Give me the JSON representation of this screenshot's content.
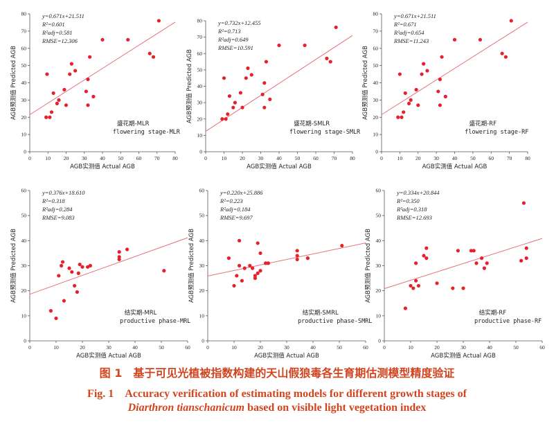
{
  "colors": {
    "points": "#e5222b",
    "fit": "#e8707a",
    "axis": "#555555",
    "caption": "#d2441e",
    "text": "#222222"
  },
  "chart_data": [
    {
      "type": "scatter",
      "xlabel": "AGB实测值 Actual AGB",
      "ylabel": "AGB预测值 Predicted AGB",
      "xlim": [
        0,
        80
      ],
      "ylim": [
        0,
        80
      ],
      "xticks": [
        0,
        10,
        20,
        30,
        40,
        50,
        60,
        70,
        80
      ],
      "yticks": [
        0,
        10,
        20,
        30,
        40,
        50,
        60,
        70,
        80
      ],
      "fit": {
        "slope": 0.671,
        "intercept": 21.511
      },
      "stats": [
        "y=0.671x+21.511",
        "R²=0.601",
        "R²adj=0.581",
        "RMSE=12.306"
      ],
      "label_cn": "盛花期-MLR",
      "label_en": "flowering stage-MLR",
      "points": [
        [
          9,
          20
        ],
        [
          9.5,
          45
        ],
        [
          11,
          20
        ],
        [
          12,
          23
        ],
        [
          13,
          34
        ],
        [
          15,
          28
        ],
        [
          16,
          30
        ],
        [
          19,
          36
        ],
        [
          20,
          27
        ],
        [
          22,
          45
        ],
        [
          23,
          51
        ],
        [
          25,
          47
        ],
        [
          31,
          35
        ],
        [
          32,
          27
        ],
        [
          32,
          42
        ],
        [
          33,
          55
        ],
        [
          35,
          32
        ],
        [
          40,
          65
        ],
        [
          54,
          65
        ],
        [
          66,
          57
        ],
        [
          68,
          55
        ],
        [
          71,
          76
        ]
      ]
    },
    {
      "type": "scatter",
      "xlabel": "AGB实测值 Actual AGB",
      "ylabel": "AGB预测值 Predicted AGB",
      "xlim": [
        0,
        80
      ],
      "ylim": [
        0,
        80
      ],
      "xticks": [
        0,
        10,
        20,
        30,
        40,
        50,
        60,
        70,
        80
      ],
      "yticks": [
        0,
        10,
        20,
        30,
        40,
        50,
        60,
        70,
        80
      ],
      "fit": {
        "slope": 0.732,
        "intercept": 12.455
      },
      "stats": [
        "y=0.732x+12.455",
        "R²=0.713",
        "R²adj=0.649",
        "RMSE=10.591"
      ],
      "label_cn": "盛花期-SMLR",
      "label_en": "flowering stage-SMLR",
      "points": [
        [
          9,
          20
        ],
        [
          10,
          45
        ],
        [
          11,
          20
        ],
        [
          12,
          23
        ],
        [
          13,
          34
        ],
        [
          15,
          27
        ],
        [
          16,
          30
        ],
        [
          19,
          36
        ],
        [
          20,
          27
        ],
        [
          22,
          45
        ],
        [
          23,
          51
        ],
        [
          25,
          47
        ],
        [
          31,
          35
        ],
        [
          32,
          27
        ],
        [
          32,
          42
        ],
        [
          33,
          55
        ],
        [
          35,
          32
        ],
        [
          40,
          65
        ],
        [
          54,
          65
        ],
        [
          66,
          57
        ],
        [
          68,
          55
        ],
        [
          71,
          76
        ]
      ]
    },
    {
      "type": "scatter",
      "xlabel": "AGB实测值 Actual AGB",
      "ylabel": "AGB预测值 Predicted AGB",
      "xlim": [
        0,
        80
      ],
      "ylim": [
        0,
        80
      ],
      "xticks": [
        0,
        10,
        20,
        30,
        40,
        50,
        60,
        70,
        80
      ],
      "yticks": [
        0,
        10,
        20,
        30,
        40,
        50,
        60,
        70,
        80
      ],
      "fit": {
        "slope": 0.671,
        "intercept": 21.511
      },
      "stats": [
        "y=0.671x+21.511",
        "R²=0.671",
        "R²adj=0.654",
        "RMSE=11.243"
      ],
      "label_cn": "盛花期-RF",
      "label_en": "flowering stage-RF",
      "points": [
        [
          9,
          20
        ],
        [
          10,
          45
        ],
        [
          11,
          20
        ],
        [
          12,
          23
        ],
        [
          13,
          34
        ],
        [
          15,
          28
        ],
        [
          16,
          30
        ],
        [
          19,
          36
        ],
        [
          20,
          27
        ],
        [
          22,
          45
        ],
        [
          23,
          51
        ],
        [
          25,
          47
        ],
        [
          31,
          35
        ],
        [
          32,
          27
        ],
        [
          32,
          42
        ],
        [
          33,
          55
        ],
        [
          35,
          32
        ],
        [
          40,
          65
        ],
        [
          54,
          65
        ],
        [
          66,
          57
        ],
        [
          68,
          55
        ],
        [
          71,
          76
        ]
      ]
    },
    {
      "type": "scatter",
      "xlabel": "AGB实测值 Actual AGB",
      "ylabel": "AGB预测值 Predicted AGB",
      "xlim": [
        0,
        60
      ],
      "ylim": [
        0,
        60
      ],
      "xticks": [
        0,
        10,
        20,
        30,
        40,
        50,
        60
      ],
      "yticks": [
        0,
        10,
        20,
        30,
        40,
        50,
        60
      ],
      "fit": {
        "slope": 0.376,
        "intercept": 18.61
      },
      "stats": [
        "y=0.376x+18.610",
        "R²=0.318",
        "R²adj=0.284",
        "RMSE=9.083"
      ],
      "label_cn": "结实期-MRL",
      "label_en": "productive phase-MRL",
      "points": [
        [
          8,
          12
        ],
        [
          10,
          9
        ],
        [
          11,
          26
        ],
        [
          12,
          30
        ],
        [
          12.5,
          31.5
        ],
        [
          13,
          16
        ],
        [
          15,
          29
        ],
        [
          16,
          27.5
        ],
        [
          17,
          22
        ],
        [
          18,
          19.5
        ],
        [
          18.5,
          27
        ],
        [
          19,
          30.5
        ],
        [
          20,
          29.5
        ],
        [
          22,
          29.5
        ],
        [
          23,
          30
        ],
        [
          34,
          32.5
        ],
        [
          34,
          33.5
        ],
        [
          34,
          35.5
        ],
        [
          37,
          36.5
        ],
        [
          51,
          28
        ]
      ]
    },
    {
      "type": "scatter",
      "xlabel": "AGB实测值 Actual AGB",
      "ylabel": "AGB预测值 Predicted AGB",
      "xlim": [
        0,
        60
      ],
      "ylim": [
        0,
        60
      ],
      "xticks": [
        0,
        10,
        20,
        30,
        40,
        50,
        60
      ],
      "yticks": [
        0,
        10,
        20,
        30,
        40,
        50,
        60
      ],
      "fit": {
        "slope": 0.22,
        "intercept": 25.886
      },
      "stats": [
        "y=0.220x+25.886",
        "R²=0.223",
        "R²adj=0.184",
        "RMSE=9.697"
      ],
      "label_cn": "结实期-SMRL",
      "label_en": "productive phase-SMRL",
      "points": [
        [
          8,
          33
        ],
        [
          10,
          22
        ],
        [
          11,
          26
        ],
        [
          12,
          40
        ],
        [
          12,
          30
        ],
        [
          13,
          24
        ],
        [
          14,
          29
        ],
        [
          16,
          30
        ],
        [
          17,
          29
        ],
        [
          18,
          26
        ],
        [
          18,
          25
        ],
        [
          19,
          27
        ],
        [
          19,
          39
        ],
        [
          20,
          28
        ],
        [
          20,
          35
        ],
        [
          22,
          31
        ],
        [
          23,
          31
        ],
        [
          34,
          32.5
        ],
        [
          34,
          34
        ],
        [
          34,
          36
        ],
        [
          38,
          33
        ],
        [
          51,
          38
        ]
      ]
    },
    {
      "type": "scatter",
      "xlabel": "AGB实测值 Actual AGB",
      "ylabel": "AGB预测值 Predicted AGB",
      "xlim": [
        0,
        60
      ],
      "ylim": [
        0,
        60
      ],
      "xticks": [
        0,
        10,
        20,
        30,
        40,
        50,
        60
      ],
      "yticks": [
        0,
        10,
        20,
        30,
        40,
        50,
        60
      ],
      "fit": {
        "slope": 0.334,
        "intercept": 20.844
      },
      "stats": [
        "y=0.334x+20.844",
        "R²=0.350",
        "R²adj=0.318",
        "RMSE=12.693"
      ],
      "label_cn": "结实期-RF",
      "label_en": "productive phase-RF",
      "points": [
        [
          8,
          13
        ],
        [
          10,
          22
        ],
        [
          11,
          21
        ],
        [
          12,
          31
        ],
        [
          12,
          24
        ],
        [
          13,
          22
        ],
        [
          15,
          34
        ],
        [
          16,
          33
        ],
        [
          16,
          37
        ],
        [
          20,
          23
        ],
        [
          26,
          21
        ],
        [
          28,
          36
        ],
        [
          30,
          21
        ],
        [
          33,
          36
        ],
        [
          34,
          36
        ],
        [
          35,
          31
        ],
        [
          37,
          33
        ],
        [
          38,
          29
        ],
        [
          39,
          31
        ],
        [
          52,
          32
        ],
        [
          53,
          55
        ],
        [
          54,
          37
        ],
        [
          54,
          33
        ]
      ]
    }
  ],
  "caption": {
    "cn": "图 1　基于可见光植被指数构建的天山假狼毒各生育期估测模型精度验证",
    "en_line1": "Fig. 1　Accuracy verification of estimating models for different growth stages of",
    "en_species": "Diarthron tianschanicum",
    "en_rest": " based on visible light vegetation index"
  }
}
